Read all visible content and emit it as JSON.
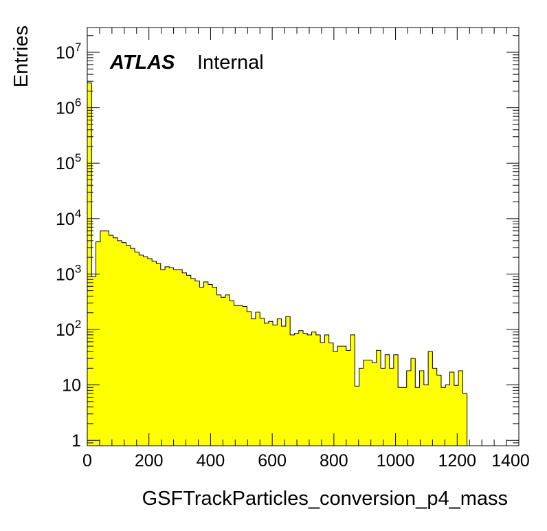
{
  "chart_data": {
    "type": "bar",
    "style": "filled-step-histogram",
    "fill_color": "#ffff00",
    "line_color": "#000000",
    "xlabel": "GSFTrackParticles_conversion_p4_mass",
    "ylabel": "Entries",
    "xlim": [
      0,
      1400
    ],
    "ylim": [
      0.8,
      28000000
    ],
    "y_scale": "log",
    "grid": false,
    "legend": "none",
    "annotation": {
      "experiment": "ATLAS",
      "status": "Internal",
      "placement": "top-left"
    },
    "x_ticks": [
      {
        "value": 0,
        "label": "0"
      },
      {
        "value": 200,
        "label": "200"
      },
      {
        "value": 400,
        "label": "400"
      },
      {
        "value": 600,
        "label": "600"
      },
      {
        "value": 800,
        "label": "800"
      },
      {
        "value": 1000,
        "label": "1000"
      },
      {
        "value": 1200,
        "label": "1200"
      },
      {
        "value": 1400,
        "label": "1400"
      }
    ],
    "y_ticks": [
      {
        "value": 1,
        "base": "1",
        "exp": ""
      },
      {
        "value": 10,
        "base": "10",
        "exp": ""
      },
      {
        "value": 100,
        "base": "10",
        "exp": "2"
      },
      {
        "value": 1000,
        "base": "10",
        "exp": "3"
      },
      {
        "value": 10000,
        "base": "10",
        "exp": "4"
      },
      {
        "value": 100000,
        "base": "10",
        "exp": "5"
      },
      {
        "value": 1000000,
        "base": "10",
        "exp": "6"
      },
      {
        "value": 10000000,
        "base": "10",
        "exp": "7"
      }
    ],
    "bin_edges_start": 0,
    "bin_width": 14,
    "values": [
      2800000,
      900,
      3800,
      6000,
      6000,
      5000,
      4500,
      4000,
      3700,
      3300,
      2900,
      2500,
      2200,
      2050,
      1900,
      1700,
      1550,
      1200,
      1350,
      1300,
      1200,
      1200,
      1050,
      950,
      830,
      750,
      580,
      720,
      650,
      580,
      420,
      380,
      420,
      330,
      270,
      270,
      260,
      210,
      155,
      205,
      160,
      130,
      140,
      120,
      155,
      115,
      170,
      80,
      85,
      95,
      85,
      80,
      90,
      80,
      58,
      80,
      57,
      40,
      50,
      50,
      42,
      80,
      9.5,
      20,
      28,
      28,
      25,
      42,
      20,
      35,
      20,
      35,
      9,
      9,
      18,
      30,
      9,
      18,
      10,
      40,
      20,
      15,
      9,
      10,
      17,
      9.8,
      18,
      7
    ]
  }
}
